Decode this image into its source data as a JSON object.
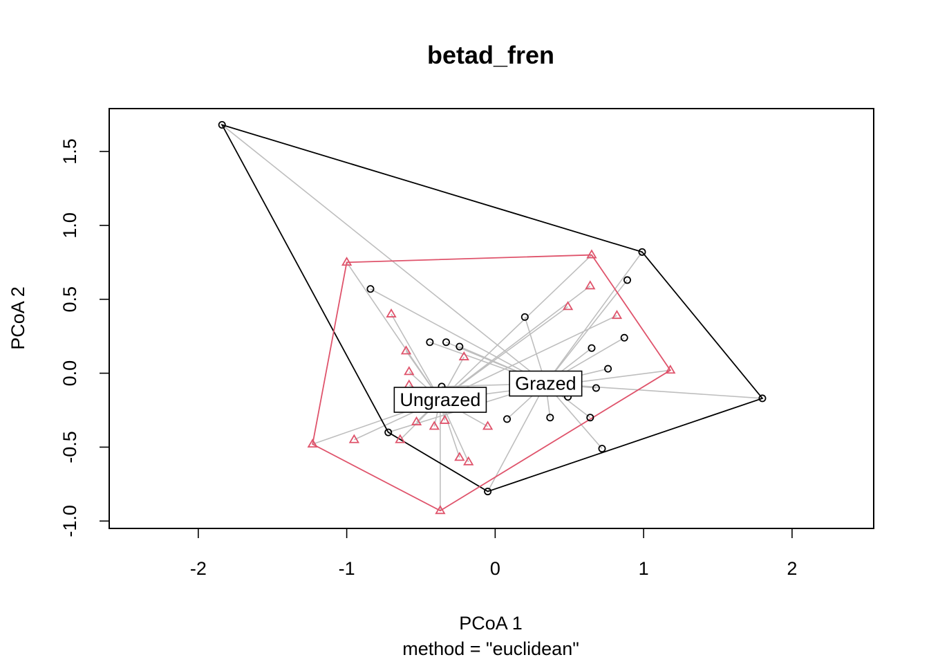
{
  "chart_data": {
    "type": "scatter",
    "title": "betad_fren",
    "xlabel": "PCoA 1",
    "ylabel": "PCoA 2",
    "subtitle": "method = \"euclidean\"",
    "xlim": [
      -2.6,
      2.55
    ],
    "ylim": [
      -1.05,
      1.79
    ],
    "x_ticks": [
      -2,
      -1,
      0,
      1,
      2
    ],
    "y_ticks": [
      -1.0,
      -0.5,
      0.0,
      0.5,
      1.0,
      1.5
    ],
    "x_tick_labels": [
      "-2",
      "-1",
      "0",
      "1",
      "2"
    ],
    "y_tick_labels": [
      "-1.0",
      "-0.5",
      "0.0",
      "0.5",
      "1.0",
      "1.5"
    ],
    "grid": false,
    "legend": "none",
    "series": [
      {
        "name": "Grazed",
        "marker": "circle",
        "color": "#000000",
        "centroid": [
          0.34,
          -0.07
        ],
        "points": [
          [
            -1.84,
            1.68
          ],
          [
            0.99,
            0.82
          ],
          [
            1.8,
            -0.17
          ],
          [
            -0.05,
            -0.8
          ],
          [
            -0.72,
            -0.4
          ],
          [
            -0.84,
            0.57
          ],
          [
            0.89,
            0.63
          ],
          [
            0.2,
            0.38
          ],
          [
            0.87,
            0.24
          ],
          [
            0.65,
            0.17
          ],
          [
            0.76,
            0.03
          ],
          [
            0.68,
            -0.1
          ],
          [
            0.49,
            -0.16
          ],
          [
            0.64,
            -0.3
          ],
          [
            0.37,
            -0.3
          ],
          [
            0.08,
            -0.31
          ],
          [
            0.72,
            -0.51
          ],
          [
            -0.44,
            0.21
          ],
          [
            -0.33,
            0.21
          ],
          [
            -0.24,
            0.18
          ],
          [
            -0.36,
            -0.09
          ]
        ],
        "hull_order": [
          0,
          1,
          2,
          3,
          4
        ]
      },
      {
        "name": "Ungrazed",
        "marker": "triangle",
        "color": "#df536b",
        "centroid": [
          -0.37,
          -0.18
        ],
        "points": [
          [
            -1.0,
            0.75
          ],
          [
            0.65,
            0.8
          ],
          [
            1.18,
            0.02
          ],
          [
            -0.37,
            -0.93
          ],
          [
            -1.23,
            -0.48
          ],
          [
            0.64,
            0.59
          ],
          [
            0.49,
            0.45
          ],
          [
            0.82,
            0.39
          ],
          [
            -0.7,
            0.4
          ],
          [
            -0.6,
            0.15
          ],
          [
            -0.21,
            0.11
          ],
          [
            -0.58,
            0.01
          ],
          [
            -0.58,
            -0.08
          ],
          [
            -0.34,
            -0.32
          ],
          [
            -0.53,
            -0.33
          ],
          [
            -0.41,
            -0.36
          ],
          [
            -0.05,
            -0.36
          ],
          [
            -0.95,
            -0.45
          ],
          [
            -0.64,
            -0.45
          ],
          [
            -0.24,
            -0.57
          ],
          [
            -0.18,
            -0.6
          ]
        ],
        "hull_order": [
          0,
          1,
          2,
          3,
          4
        ]
      }
    ],
    "colors": {
      "spider": "#bebebe",
      "grazed": "#000000",
      "ungrazed": "#df536b"
    }
  }
}
